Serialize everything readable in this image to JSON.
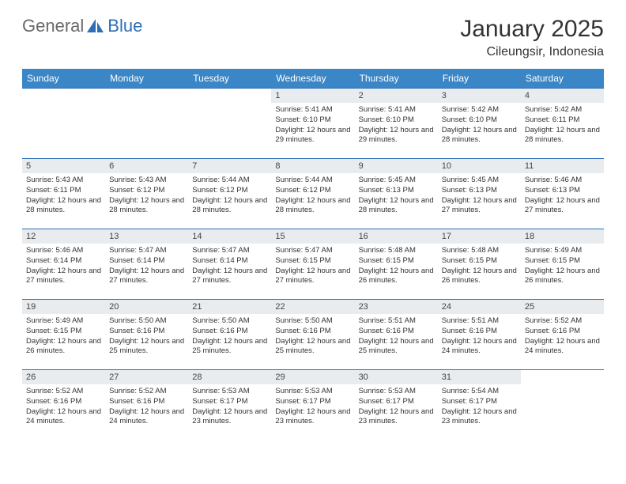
{
  "brand": {
    "part1": "General",
    "part2": "Blue"
  },
  "title": "January 2025",
  "location": "Cileungsir, Indonesia",
  "accent_color": "#3b86c6",
  "border_color": "#2d6fb7",
  "daynum_bg": "#e9ecef",
  "text_color": "#333333",
  "weekdays": [
    "Sunday",
    "Monday",
    "Tuesday",
    "Wednesday",
    "Thursday",
    "Friday",
    "Saturday"
  ],
  "weeks": [
    [
      {
        "n": "",
        "sr": "",
        "ss": "",
        "dl": ""
      },
      {
        "n": "",
        "sr": "",
        "ss": "",
        "dl": ""
      },
      {
        "n": "",
        "sr": "",
        "ss": "",
        "dl": ""
      },
      {
        "n": "1",
        "sr": "Sunrise: 5:41 AM",
        "ss": "Sunset: 6:10 PM",
        "dl": "Daylight: 12 hours and 29 minutes."
      },
      {
        "n": "2",
        "sr": "Sunrise: 5:41 AM",
        "ss": "Sunset: 6:10 PM",
        "dl": "Daylight: 12 hours and 29 minutes."
      },
      {
        "n": "3",
        "sr": "Sunrise: 5:42 AM",
        "ss": "Sunset: 6:10 PM",
        "dl": "Daylight: 12 hours and 28 minutes."
      },
      {
        "n": "4",
        "sr": "Sunrise: 5:42 AM",
        "ss": "Sunset: 6:11 PM",
        "dl": "Daylight: 12 hours and 28 minutes."
      }
    ],
    [
      {
        "n": "5",
        "sr": "Sunrise: 5:43 AM",
        "ss": "Sunset: 6:11 PM",
        "dl": "Daylight: 12 hours and 28 minutes."
      },
      {
        "n": "6",
        "sr": "Sunrise: 5:43 AM",
        "ss": "Sunset: 6:12 PM",
        "dl": "Daylight: 12 hours and 28 minutes."
      },
      {
        "n": "7",
        "sr": "Sunrise: 5:44 AM",
        "ss": "Sunset: 6:12 PM",
        "dl": "Daylight: 12 hours and 28 minutes."
      },
      {
        "n": "8",
        "sr": "Sunrise: 5:44 AM",
        "ss": "Sunset: 6:12 PM",
        "dl": "Daylight: 12 hours and 28 minutes."
      },
      {
        "n": "9",
        "sr": "Sunrise: 5:45 AM",
        "ss": "Sunset: 6:13 PM",
        "dl": "Daylight: 12 hours and 28 minutes."
      },
      {
        "n": "10",
        "sr": "Sunrise: 5:45 AM",
        "ss": "Sunset: 6:13 PM",
        "dl": "Daylight: 12 hours and 27 minutes."
      },
      {
        "n": "11",
        "sr": "Sunrise: 5:46 AM",
        "ss": "Sunset: 6:13 PM",
        "dl": "Daylight: 12 hours and 27 minutes."
      }
    ],
    [
      {
        "n": "12",
        "sr": "Sunrise: 5:46 AM",
        "ss": "Sunset: 6:14 PM",
        "dl": "Daylight: 12 hours and 27 minutes."
      },
      {
        "n": "13",
        "sr": "Sunrise: 5:47 AM",
        "ss": "Sunset: 6:14 PM",
        "dl": "Daylight: 12 hours and 27 minutes."
      },
      {
        "n": "14",
        "sr": "Sunrise: 5:47 AM",
        "ss": "Sunset: 6:14 PM",
        "dl": "Daylight: 12 hours and 27 minutes."
      },
      {
        "n": "15",
        "sr": "Sunrise: 5:47 AM",
        "ss": "Sunset: 6:15 PM",
        "dl": "Daylight: 12 hours and 27 minutes."
      },
      {
        "n": "16",
        "sr": "Sunrise: 5:48 AM",
        "ss": "Sunset: 6:15 PM",
        "dl": "Daylight: 12 hours and 26 minutes."
      },
      {
        "n": "17",
        "sr": "Sunrise: 5:48 AM",
        "ss": "Sunset: 6:15 PM",
        "dl": "Daylight: 12 hours and 26 minutes."
      },
      {
        "n": "18",
        "sr": "Sunrise: 5:49 AM",
        "ss": "Sunset: 6:15 PM",
        "dl": "Daylight: 12 hours and 26 minutes."
      }
    ],
    [
      {
        "n": "19",
        "sr": "Sunrise: 5:49 AM",
        "ss": "Sunset: 6:15 PM",
        "dl": "Daylight: 12 hours and 26 minutes."
      },
      {
        "n": "20",
        "sr": "Sunrise: 5:50 AM",
        "ss": "Sunset: 6:16 PM",
        "dl": "Daylight: 12 hours and 25 minutes."
      },
      {
        "n": "21",
        "sr": "Sunrise: 5:50 AM",
        "ss": "Sunset: 6:16 PM",
        "dl": "Daylight: 12 hours and 25 minutes."
      },
      {
        "n": "22",
        "sr": "Sunrise: 5:50 AM",
        "ss": "Sunset: 6:16 PM",
        "dl": "Daylight: 12 hours and 25 minutes."
      },
      {
        "n": "23",
        "sr": "Sunrise: 5:51 AM",
        "ss": "Sunset: 6:16 PM",
        "dl": "Daylight: 12 hours and 25 minutes."
      },
      {
        "n": "24",
        "sr": "Sunrise: 5:51 AM",
        "ss": "Sunset: 6:16 PM",
        "dl": "Daylight: 12 hours and 24 minutes."
      },
      {
        "n": "25",
        "sr": "Sunrise: 5:52 AM",
        "ss": "Sunset: 6:16 PM",
        "dl": "Daylight: 12 hours and 24 minutes."
      }
    ],
    [
      {
        "n": "26",
        "sr": "Sunrise: 5:52 AM",
        "ss": "Sunset: 6:16 PM",
        "dl": "Daylight: 12 hours and 24 minutes."
      },
      {
        "n": "27",
        "sr": "Sunrise: 5:52 AM",
        "ss": "Sunset: 6:16 PM",
        "dl": "Daylight: 12 hours and 24 minutes."
      },
      {
        "n": "28",
        "sr": "Sunrise: 5:53 AM",
        "ss": "Sunset: 6:17 PM",
        "dl": "Daylight: 12 hours and 23 minutes."
      },
      {
        "n": "29",
        "sr": "Sunrise: 5:53 AM",
        "ss": "Sunset: 6:17 PM",
        "dl": "Daylight: 12 hours and 23 minutes."
      },
      {
        "n": "30",
        "sr": "Sunrise: 5:53 AM",
        "ss": "Sunset: 6:17 PM",
        "dl": "Daylight: 12 hours and 23 minutes."
      },
      {
        "n": "31",
        "sr": "Sunrise: 5:54 AM",
        "ss": "Sunset: 6:17 PM",
        "dl": "Daylight: 12 hours and 23 minutes."
      },
      {
        "n": "",
        "sr": "",
        "ss": "",
        "dl": ""
      }
    ]
  ]
}
